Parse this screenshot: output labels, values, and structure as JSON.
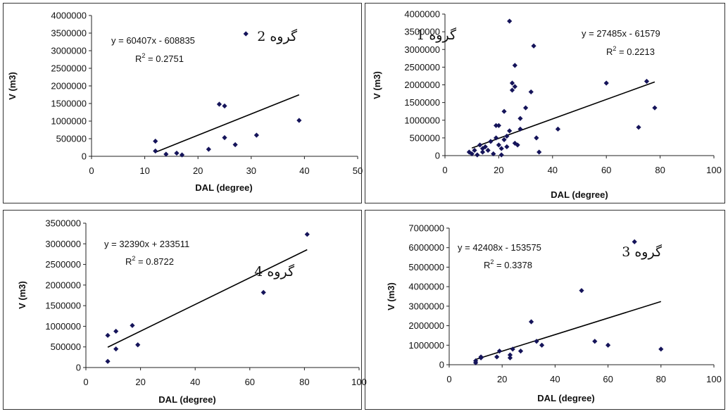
{
  "chart_data": [
    {
      "type": "scatter",
      "group_label": "گروه 2",
      "equation": "y = 60407x - 608835",
      "r2_base": "R",
      "r2_exp": "2",
      "r2_value": " = 0.2751",
      "xlabel": "DAL (degree)",
      "ylabel": "V (m3)",
      "xlim": [
        0,
        50
      ],
      "ylim": [
        0,
        4000000
      ],
      "xticks": [
        "0",
        "10",
        "20",
        "30",
        "40",
        "50"
      ],
      "yticks": [
        "0",
        "500000",
        "1000000",
        "1500000",
        "2000000",
        "2500000",
        "3000000",
        "3500000",
        "4000000"
      ],
      "trendline": {
        "slope": 60407,
        "intercept": -608835,
        "x_range": [
          12,
          39
        ]
      },
      "points": [
        [
          12,
          430000
        ],
        [
          12,
          150000
        ],
        [
          14,
          60000
        ],
        [
          16,
          90000
        ],
        [
          17,
          40000
        ],
        [
          22,
          200000
        ],
        [
          24,
          1480000
        ],
        [
          25,
          1430000
        ],
        [
          25,
          530000
        ],
        [
          27,
          330000
        ],
        [
          29,
          3480000
        ],
        [
          31,
          600000
        ],
        [
          39,
          1020000
        ]
      ]
    },
    {
      "type": "scatter",
      "group_label": "گروه 1",
      "equation": "y = 27485x - 61579",
      "r2_base": "R",
      "r2_exp": "2",
      "r2_value": " = 0.2213",
      "xlabel": "DAL (degree)",
      "ylabel": "V (m3)",
      "xlim": [
        0,
        100
      ],
      "ylim": [
        0,
        4000000
      ],
      "xticks": [
        "0",
        "20",
        "40",
        "60",
        "80",
        "100"
      ],
      "yticks": [
        "0",
        "500000",
        "1000000",
        "1500000",
        "2000000",
        "2500000",
        "3000000",
        "3500000",
        "4000000"
      ],
      "trendline": {
        "slope": 27485,
        "intercept": -61579,
        "x_range": [
          10,
          78
        ]
      },
      "points": [
        [
          9,
          100000
        ],
        [
          10,
          50000
        ],
        [
          11,
          150000
        ],
        [
          12,
          20000
        ],
        [
          13,
          300000
        ],
        [
          14,
          100000
        ],
        [
          14,
          200000
        ],
        [
          15,
          250000
        ],
        [
          16,
          150000
        ],
        [
          17,
          400000
        ],
        [
          18,
          50000
        ],
        [
          19,
          500000
        ],
        [
          19,
          850000
        ],
        [
          20,
          300000
        ],
        [
          20,
          850000
        ],
        [
          21,
          20000
        ],
        [
          21,
          200000
        ],
        [
          22,
          450000
        ],
        [
          22,
          1250000
        ],
        [
          23,
          550000
        ],
        [
          23,
          250000
        ],
        [
          24,
          3800000
        ],
        [
          24,
          700000
        ],
        [
          25,
          2050000
        ],
        [
          25,
          1850000
        ],
        [
          26,
          2550000
        ],
        [
          26,
          1950000
        ],
        [
          26,
          350000
        ],
        [
          27,
          300000
        ],
        [
          28,
          1050000
        ],
        [
          28,
          750000
        ],
        [
          30,
          1350000
        ],
        [
          32,
          1800000
        ],
        [
          33,
          3100000
        ],
        [
          34,
          500000
        ],
        [
          35,
          100000
        ],
        [
          42,
          750000
        ],
        [
          60,
          2050000
        ],
        [
          72,
          800000
        ],
        [
          75,
          2100000
        ],
        [
          78,
          1350000
        ]
      ]
    },
    {
      "type": "scatter",
      "group_label": "گروه 4",
      "equation": "y = 32390x + 233511",
      "r2_base": "R",
      "r2_exp": "2",
      "r2_value": " = 0.8722",
      "xlabel": "DAL (degree)",
      "ylabel": "V (m3)",
      "xlim": [
        0,
        100
      ],
      "ylim": [
        0,
        3500000
      ],
      "xticks": [
        "0",
        "20",
        "40",
        "60",
        "80",
        "100"
      ],
      "yticks": [
        "0",
        "500000",
        "1000000",
        "1500000",
        "2000000",
        "2500000",
        "3000000",
        "3500000"
      ],
      "trendline": {
        "slope": 32390,
        "intercept": 233511,
        "x_range": [
          8,
          81
        ]
      },
      "points": [
        [
          8,
          780000
        ],
        [
          8,
          150000
        ],
        [
          11,
          880000
        ],
        [
          11,
          450000
        ],
        [
          17,
          1020000
        ],
        [
          19,
          550000
        ],
        [
          65,
          1820000
        ],
        [
          81,
          3230000
        ]
      ]
    },
    {
      "type": "scatter",
      "group_label": "گروه 3",
      "equation": "y = 42408x - 153575",
      "r2_base": "R",
      "r2_exp": "2",
      "r2_value": " = 0.3378",
      "xlabel": "DAL (degree)",
      "ylabel": "V (m3)",
      "xlim": [
        0,
        100
      ],
      "ylim": [
        0,
        7000000
      ],
      "xticks": [
        "0",
        "20",
        "40",
        "60",
        "80",
        "100"
      ],
      "yticks": [
        "0",
        "1000000",
        "2000000",
        "3000000",
        "4000000",
        "5000000",
        "6000000",
        "7000000"
      ],
      "trendline": {
        "slope": 42408,
        "intercept": -153575,
        "x_range": [
          10,
          80
        ]
      },
      "points": [
        [
          10,
          200000
        ],
        [
          10,
          100000
        ],
        [
          12,
          350000
        ],
        [
          12,
          400000
        ],
        [
          18,
          400000
        ],
        [
          19,
          700000
        ],
        [
          23,
          350000
        ],
        [
          23,
          500000
        ],
        [
          24,
          800000
        ],
        [
          27,
          700000
        ],
        [
          31,
          2200000
        ],
        [
          33,
          1200000
        ],
        [
          35,
          1000000
        ],
        [
          50,
          3800000
        ],
        [
          55,
          1200000
        ],
        [
          60,
          1000000
        ],
        [
          70,
          6300000
        ],
        [
          80,
          800000
        ]
      ]
    }
  ]
}
